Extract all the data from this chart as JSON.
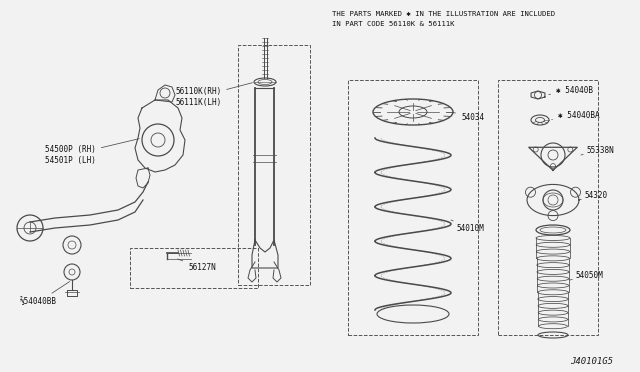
{
  "bg_color": "#f0f0f0",
  "line_color": "#4a4a4a",
  "title_line1": "THE PARTS MARKED ✱ IN THE ILLUSTRATION ARE INCLUDED",
  "title_line2": "IN PART CODE 56110K & 56111K",
  "footer_text": "J40101G5",
  "fs_label": 5.5,
  "fs_footer": 6.0
}
